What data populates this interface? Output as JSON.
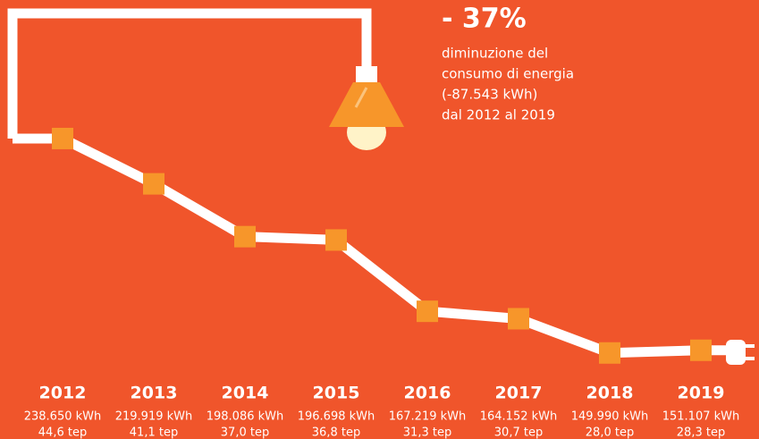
{
  "chart_data": {
    "type": "line",
    "title": "- 37%",
    "annotations": [
      "diminuzione del",
      "consumo di energia",
      "(-87.543 kWh)",
      "dal 2012 al 2019"
    ],
    "categories": [
      "2012",
      "2013",
      "2014",
      "2015",
      "2016",
      "2017",
      "2018",
      "2019"
    ],
    "values": [
      238650,
      219919,
      198086,
      196698,
      167219,
      164152,
      149990,
      151107
    ],
    "value_labels": [
      "238.650 kWh",
      "219.919 kWh",
      "198.086 kWh",
      "196.698 kWh",
      "167.219 kWh",
      "164.152 kWh",
      "149.990 kWh",
      "151.107 kWh"
    ],
    "tep": {
      "values": [
        44.6,
        41.1,
        37.0,
        36.8,
        31.3,
        30.7,
        28.0,
        28.3
      ],
      "value_labels": [
        "44,6 tep",
        "41,1 tep",
        "37,0 tep",
        "36,8 tep",
        "31,3 tep",
        "30,7 tep",
        "28,0 tep",
        "28,3 tep"
      ]
    },
    "ylim": [
      100000,
      300000
    ],
    "color": "#f7962a",
    "line_color": "#ffffff"
  }
}
